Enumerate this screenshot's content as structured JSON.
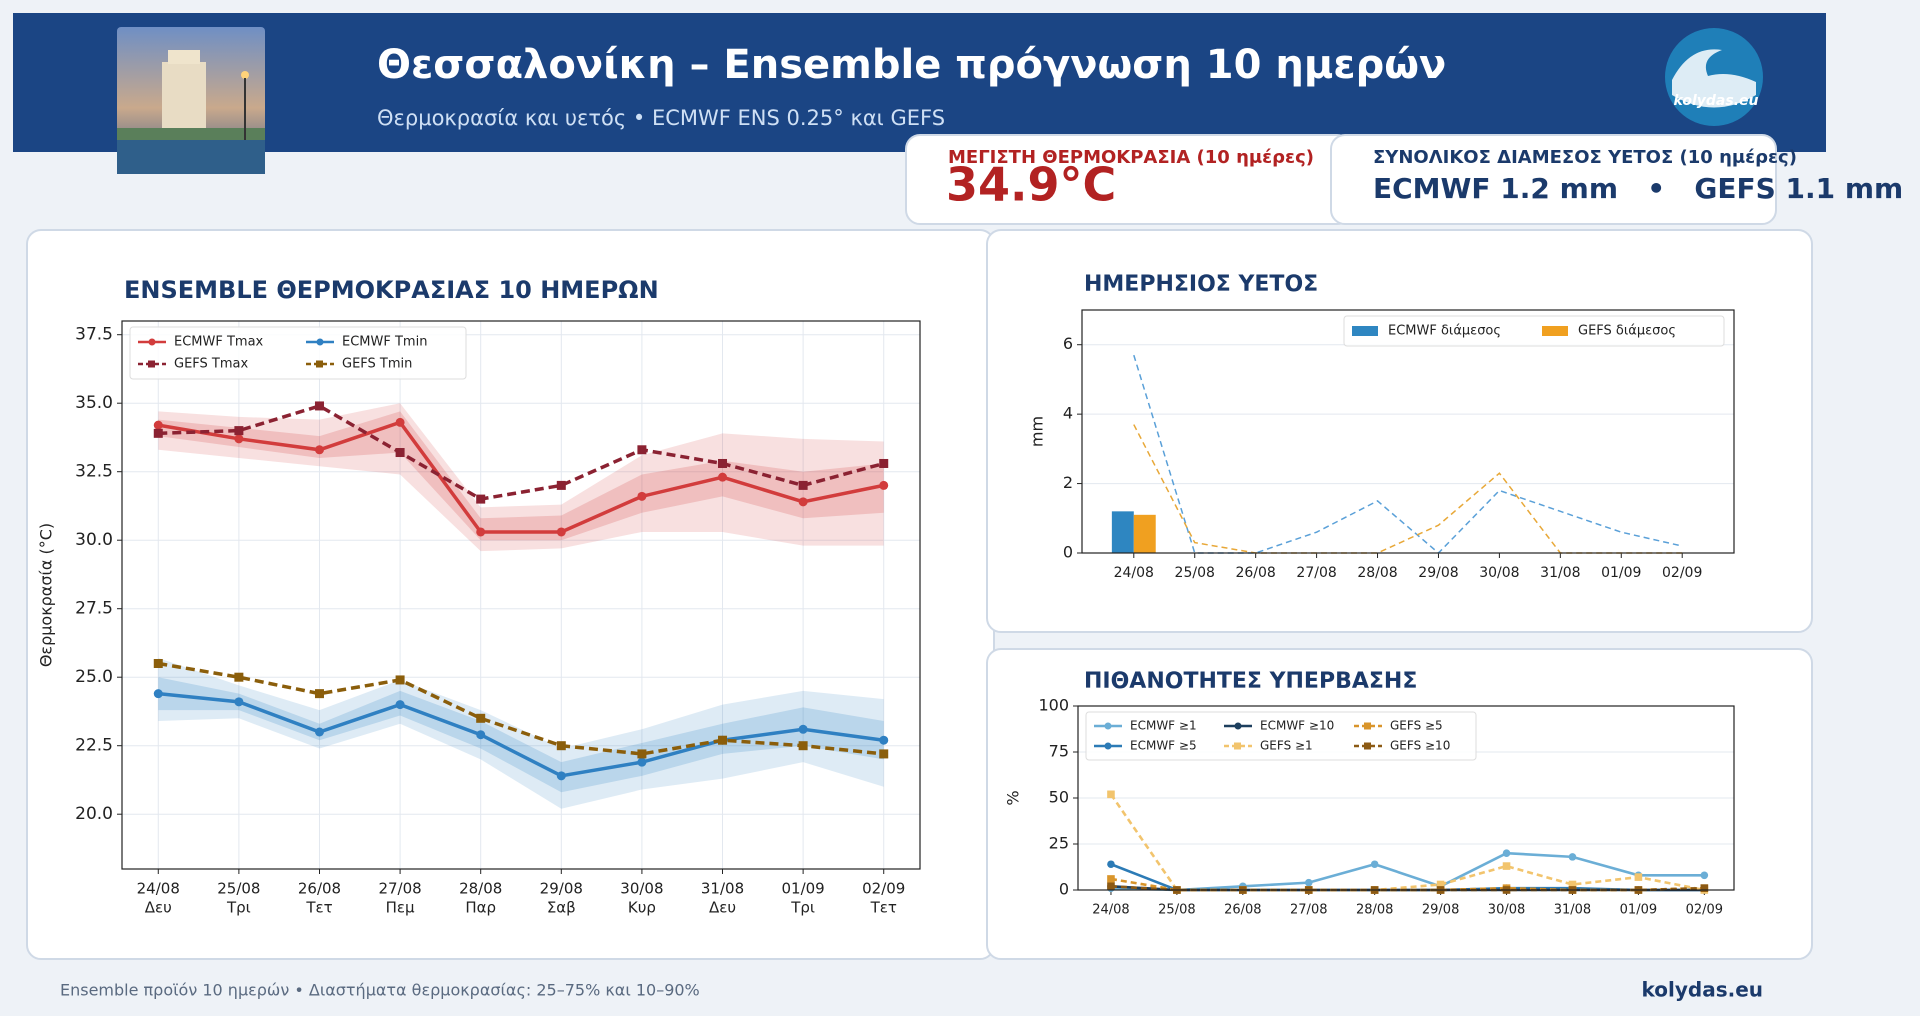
{
  "header": {
    "title": "Θεσσαλονίκη – Ensemble πρόγνωση 10 ημερών",
    "subtitle": "Θερμοκρασία και υετός • ECMWF ENS 0.25° και GEFS",
    "logo": "kolydas.eu"
  },
  "cards": [
    {
      "label": "ΜΕΓΙΣΤΗ ΘΕΡΜΟΚΡΑΣΙΑ (10 ημέρες)",
      "value": "34.9°C"
    },
    {
      "label": "ΣΥΝΟΛΙΚΟΣ ΔΙΑΜΕΣΟΣ ΥΕΤΟΣ (10 ημέρες)",
      "value": "ECMWF 1.2 mm   •   GEFS 1.1 mm"
    }
  ],
  "chart_data": [
    {
      "type": "line",
      "title": "ENSEMBLE ΘΕΡΜΟΚΡΑΣΙΑΣ 10 ΗΜΕΡΩΝ",
      "y_label": "Θερμοκρασία (°C)",
      "categories": [
        "24/08",
        "25/08",
        "26/08",
        "27/08",
        "28/08",
        "29/08",
        "30/08",
        "31/08",
        "01/09",
        "02/09"
      ],
      "weekdays": [
        "Δευ",
        "Τρι",
        "Τετ",
        "Πεμ",
        "Παρ",
        "Σαβ",
        "Κυρ",
        "Δευ",
        "Τρι",
        "Τετ"
      ],
      "ylim": [
        18.0,
        38.0
      ],
      "yticks": [
        {
          "value": 20,
          "label": "20.0"
        },
        {
          "value": 22.5,
          "label": "22.5"
        },
        {
          "value": 25,
          "label": "25.0"
        },
        {
          "value": 27.5,
          "label": "27.5"
        },
        {
          "value": 30,
          "label": "30.0"
        },
        {
          "value": 32.5,
          "label": "32.5"
        },
        {
          "value": 35,
          "label": "35.0"
        },
        {
          "value": 37.5,
          "label": "37.5"
        }
      ],
      "grid": "both",
      "legend": "upper left",
      "legend_columns": 2,
      "series": [
        {
          "name": "ECMWF Tmax",
          "color": "#d23c3c",
          "marker": "circle",
          "linestyle": "solid",
          "values": [
            34.2,
            33.7,
            33.3,
            34.3,
            30.3,
            30.3,
            31.6,
            32.3,
            31.4,
            32.0
          ],
          "bands": [
            {
              "low": [
                33.3,
                33.0,
                32.7,
                32.4,
                29.6,
                29.7,
                30.3,
                30.3,
                29.8,
                29.8
              ],
              "high": [
                34.7,
                34.5,
                34.4,
                35.0,
                31.2,
                31.3,
                33.1,
                33.9,
                33.7,
                33.6
              ]
            },
            {
              "low": [
                33.8,
                33.4,
                33.0,
                33.2,
                30.0,
                30.0,
                31.0,
                31.6,
                30.8,
                31.0
              ],
              "high": [
                34.4,
                34.1,
                33.8,
                34.7,
                30.8,
                30.9,
                32.4,
                32.9,
                32.5,
                32.8
              ]
            }
          ]
        },
        {
          "name": "GEFS Tmax",
          "color": "#8b2232",
          "marker": "square",
          "linestyle": "dashed",
          "values": [
            33.9,
            34.0,
            34.9,
            33.2,
            31.5,
            32.0,
            33.3,
            32.8,
            32.0,
            32.8
          ]
        },
        {
          "name": "ECMWF Tmin",
          "color": "#2f80c2",
          "marker": "circle",
          "linestyle": "solid",
          "values": [
            24.4,
            24.1,
            23.0,
            24.0,
            22.9,
            21.4,
            21.9,
            22.7,
            23.1,
            22.7
          ],
          "bands": [
            {
              "low": [
                23.4,
                23.5,
                22.4,
                23.3,
                22.0,
                20.2,
                20.9,
                21.3,
                21.9,
                21.0
              ],
              "high": [
                25.7,
                24.7,
                23.8,
                24.9,
                23.8,
                22.4,
                23.1,
                24.0,
                24.5,
                24.2
              ]
            },
            {
              "low": [
                23.8,
                23.8,
                22.7,
                23.6,
                22.4,
                20.8,
                21.4,
                22.2,
                22.5,
                22.0
              ],
              "high": [
                25.0,
                24.4,
                23.3,
                24.5,
                23.4,
                21.9,
                22.6,
                23.3,
                23.9,
                23.4
              ]
            }
          ]
        },
        {
          "name": "GEFS Tmin",
          "color": "#8b5e0b",
          "marker": "square",
          "linestyle": "dashed",
          "values": [
            25.5,
            25.0,
            24.4,
            24.9,
            23.5,
            22.5,
            22.2,
            22.7,
            22.5,
            22.2
          ]
        }
      ]
    },
    {
      "type": "bar",
      "title": "ΗΜΕΡΗΣΙΟΣ ΥΕΤΟΣ",
      "y_label": "mm",
      "categories": [
        "24/08",
        "25/08",
        "26/08",
        "27/08",
        "28/08",
        "29/08",
        "30/08",
        "31/08",
        "01/09",
        "02/09"
      ],
      "ylim": [
        0,
        7.0
      ],
      "yticks": [
        0,
        2,
        4,
        6
      ],
      "grid": "y",
      "legend": "upper right",
      "legend_columns": 2,
      "series": [
        {
          "name": "ECMWF διάμεσος",
          "color": "#2e86c1",
          "values": [
            1.2,
            0,
            0,
            0,
            0,
            0,
            0,
            0,
            0,
            0
          ]
        },
        {
          "name": "GEFS διάμεσος",
          "color": "#f0a020",
          "values": [
            1.1,
            0,
            0,
            0,
            0,
            0,
            0,
            0,
            0,
            0
          ]
        },
        {
          "type": "line",
          "color": "#5aa0d8",
          "linestyle": "dashed",
          "values": [
            5.7,
            0,
            0,
            0.6,
            1.5,
            0,
            1.8,
            1.2,
            0.6,
            0.2
          ]
        },
        {
          "type": "line",
          "color": "#e8a838",
          "linestyle": "dashed",
          "values": [
            3.7,
            0.3,
            0,
            0,
            0,
            0.8,
            2.3,
            0,
            0,
            0
          ]
        }
      ]
    },
    {
      "type": "line",
      "title": "ΠΙΘΑΝΟΤΗΤΕΣ ΥΠΕΡΒΑΣΗΣ",
      "y_label": "%",
      "categories": [
        "24/08",
        "25/08",
        "26/08",
        "27/08",
        "28/08",
        "29/08",
        "30/08",
        "31/08",
        "01/09",
        "02/09"
      ],
      "ylim": [
        0,
        100
      ],
      "yticks": [
        0,
        25,
        50,
        75,
        100
      ],
      "grid": "y",
      "legend": "upper left",
      "legend_columns": 3,
      "series": [
        {
          "name": "ECMWF ≥1",
          "color": "#6baed6",
          "marker": "circle",
          "linestyle": "solid",
          "values": [
            1,
            0,
            2,
            4,
            14,
            2,
            20,
            18,
            8,
            8
          ]
        },
        {
          "name": "ECMWF ≥5",
          "color": "#2c7bb6",
          "marker": "circle",
          "linestyle": "solid",
          "values": [
            14,
            0,
            0,
            0,
            0,
            0,
            1,
            1,
            0,
            0
          ]
        },
        {
          "name": "ECMWF ≥10",
          "color": "#1d3f5e",
          "marker": "circle",
          "linestyle": "solid",
          "values": [
            2,
            0,
            0,
            0,
            0,
            0,
            0,
            0,
            0,
            0
          ]
        },
        {
          "name": "GEFS ≥1",
          "color": "#f2c46d",
          "marker": "square",
          "linestyle": "dashed",
          "values": [
            52,
            0,
            0,
            0,
            0,
            3,
            13,
            3,
            7,
            0
          ]
        },
        {
          "name": "GEFS ≥5",
          "color": "#d9952b",
          "marker": "square",
          "linestyle": "dashed",
          "values": [
            6,
            0,
            0,
            0,
            0,
            0,
            1,
            0,
            0,
            1
          ]
        },
        {
          "name": "GEFS ≥10",
          "color": "#8c5a14",
          "marker": "square",
          "linestyle": "dashed",
          "values": [
            2,
            0,
            0,
            0,
            0,
            0,
            0,
            0,
            0,
            1
          ]
        }
      ]
    }
  ],
  "footer": {
    "note": "Ensemble προϊόν 10 ημερών • Διαστήματα θερμοκρασίας: 25–75% και 10–90%",
    "brand": "kolydas.eu"
  }
}
